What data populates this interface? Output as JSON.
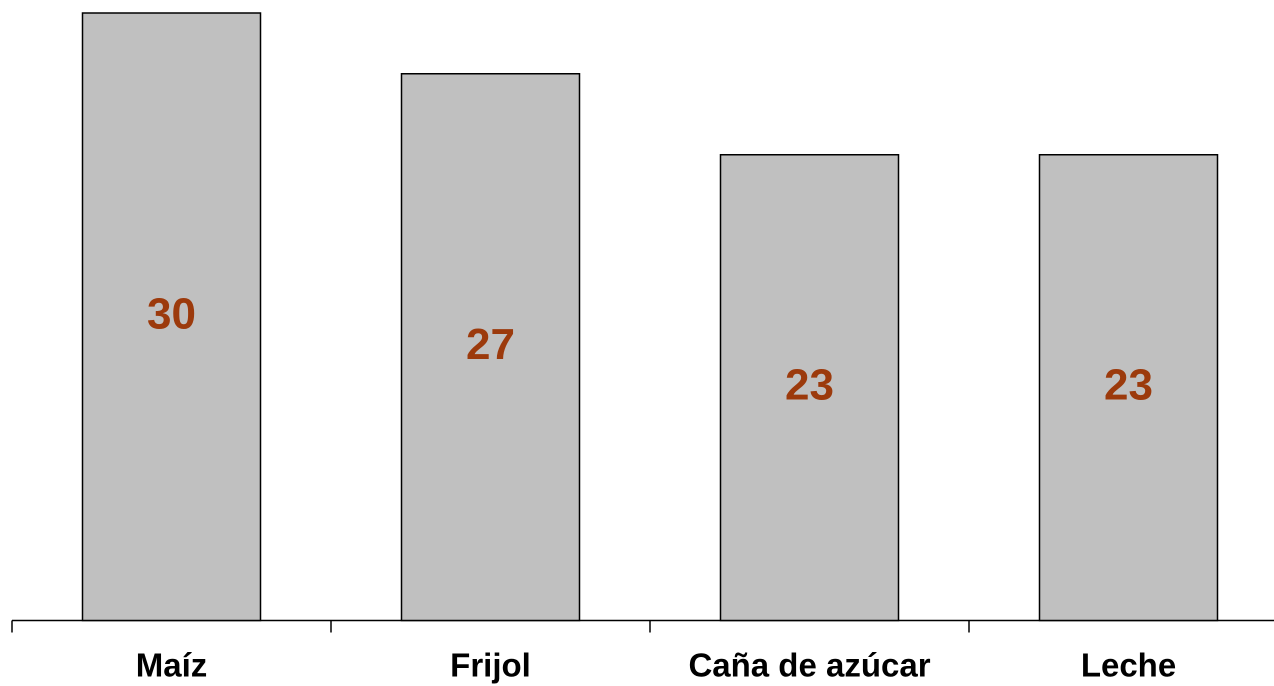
{
  "chart_data": {
    "type": "bar",
    "categories": [
      "Maíz",
      "Frijol",
      "Caña de azúcar",
      "Leche"
    ],
    "values": [
      30,
      27,
      23,
      23
    ],
    "color": "#c0c0c0",
    "label_color": "#9c3a0c",
    "ylim": [
      0,
      30
    ]
  }
}
